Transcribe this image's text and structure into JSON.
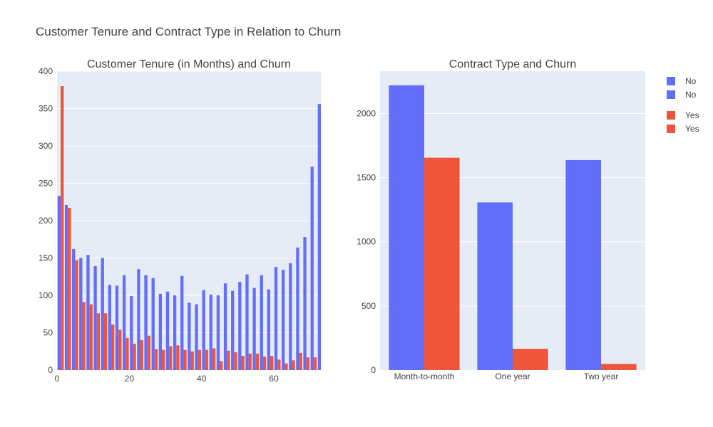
{
  "figure": {
    "title": "Customer Tenure and Contract Type in Relation to Churn"
  },
  "colors": {
    "no": "#636efa",
    "yes": "#ef553b",
    "plot_bg": "#e5ecf6",
    "grid": "#ffffff"
  },
  "chart_data": [
    {
      "type": "bar",
      "title": "Customer Tenure (in Months) and Churn",
      "xlabel": "",
      "ylabel": "",
      "xlim": [
        0,
        73
      ],
      "ylim": [
        0,
        400
      ],
      "x_ticks": [
        0,
        20,
        40,
        60
      ],
      "y_ticks": [
        0,
        50,
        100,
        150,
        200,
        250,
        300,
        350,
        400
      ],
      "grid": true,
      "bin_width": 2,
      "x": [
        0,
        2,
        4,
        6,
        8,
        10,
        12,
        14,
        16,
        18,
        20,
        22,
        24,
        26,
        28,
        30,
        32,
        34,
        36,
        38,
        40,
        42,
        44,
        46,
        48,
        50,
        52,
        54,
        56,
        58,
        60,
        62,
        64,
        66,
        68,
        70,
        72
      ],
      "series": [
        {
          "name": "No",
          "values": [
            233,
            221,
            162,
            150,
            154,
            139,
            150,
            114,
            113,
            127,
            99,
            135,
            127,
            123,
            102,
            105,
            100,
            126,
            90,
            88,
            107,
            101,
            100,
            116,
            106,
            118,
            128,
            110,
            127,
            108,
            138,
            134,
            143,
            164,
            178,
            272,
            356
          ]
        },
        {
          "name": "Yes",
          "values": [
            380,
            217,
            147,
            91,
            88,
            76,
            76,
            61,
            54,
            43,
            35,
            40,
            46,
            28,
            27,
            32,
            33,
            27,
            25,
            27,
            27,
            29,
            12,
            26,
            24,
            19,
            22,
            22,
            18,
            19,
            14,
            9,
            13,
            23,
            17,
            17,
            6
          ]
        }
      ]
    },
    {
      "type": "bar",
      "title": "Contract Type and Churn",
      "xlabel": "",
      "ylabel": "",
      "categories": [
        "Month-to-month",
        "One year",
        "Two year"
      ],
      "ylim": [
        0,
        2330
      ],
      "y_ticks": [
        0,
        500,
        1000,
        1500,
        2000
      ],
      "grid": true,
      "series": [
        {
          "name": "No",
          "values": [
            2220,
            1307,
            1637
          ]
        },
        {
          "name": "Yes",
          "values": [
            1655,
            166,
            48
          ]
        }
      ]
    }
  ],
  "legend": {
    "placement": "top-right",
    "items": [
      {
        "label": "No",
        "color_key": "no"
      },
      {
        "label": "No",
        "color_key": "no"
      },
      {
        "label": "Yes",
        "color_key": "yes"
      },
      {
        "label": "Yes",
        "color_key": "yes"
      }
    ]
  }
}
